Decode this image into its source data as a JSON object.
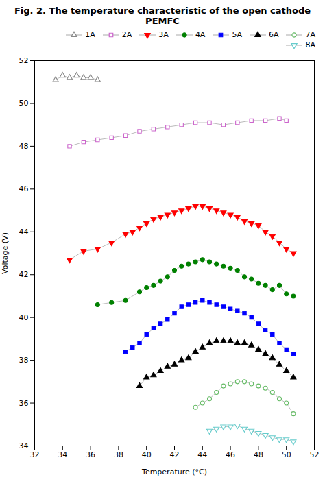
{
  "chart_data": {
    "type": "line",
    "title": "Fig. 2. The temperature characteristic of the open cathode PEMFC",
    "x_label": "Temperature (°C)",
    "y_label": "Voltage (V)",
    "xlim": [
      32,
      52
    ],
    "ylim": [
      34,
      52
    ],
    "xticks": [
      32,
      34,
      36,
      38,
      40,
      42,
      44,
      46,
      48,
      50,
      52
    ],
    "yticks": [
      34,
      36,
      38,
      40,
      42,
      44,
      46,
      48,
      50,
      52
    ],
    "grid": false,
    "legend": "top-right",
    "series": [
      {
        "name": "1A",
        "color": "#888888",
        "marker": "triangle_open",
        "x": [
          33.5,
          34.0,
          34.5,
          35.0,
          35.5,
          36.0,
          36.5
        ],
        "values": [
          51.1,
          51.3,
          51.2,
          51.3,
          51.2,
          51.2,
          51.1
        ]
      },
      {
        "name": "2A",
        "color": "#cc66cc",
        "marker": "square_open",
        "x": [
          34.5,
          35.5,
          36.5,
          37.5,
          38.5,
          39.5,
          40.5,
          41.5,
          42.5,
          43.5,
          44.5,
          45.5,
          46.5,
          47.5,
          48.5,
          49.5,
          50.0
        ],
        "values": [
          48.0,
          48.2,
          48.3,
          48.4,
          48.5,
          48.7,
          48.8,
          48.9,
          49.0,
          49.1,
          49.1,
          49.0,
          49.1,
          49.2,
          49.2,
          49.3,
          49.2
        ]
      },
      {
        "name": "3A",
        "color": "red",
        "marker": "triangle-down",
        "x": [
          34.5,
          35.5,
          36.5,
          37.5,
          38.5,
          39.0,
          39.5,
          40.0,
          40.5,
          41.0,
          41.5,
          42.0,
          42.5,
          43.0,
          43.5,
          44.0,
          44.5,
          45.0,
          45.5,
          46.0,
          46.5,
          47.0,
          47.5,
          48.0,
          48.5,
          49.0,
          49.5,
          50.0,
          50.5
        ],
        "values": [
          42.7,
          43.1,
          43.2,
          43.5,
          43.9,
          44.0,
          44.2,
          44.4,
          44.6,
          44.7,
          44.8,
          44.9,
          45.0,
          45.1,
          45.2,
          45.2,
          45.1,
          45.0,
          44.9,
          44.8,
          44.7,
          44.5,
          44.4,
          44.3,
          44.0,
          43.8,
          43.5,
          43.2,
          43.0
        ]
      },
      {
        "name": "4A",
        "color": "green",
        "marker": "circle",
        "x": [
          36.5,
          37.5,
          38.5,
          39.5,
          40.0,
          40.5,
          41.0,
          41.5,
          42.0,
          42.5,
          43.0,
          43.5,
          44.0,
          44.5,
          45.0,
          45.5,
          46.0,
          46.5,
          47.0,
          47.5,
          48.0,
          48.5,
          49.0,
          49.5,
          50.0,
          50.5
        ],
        "values": [
          40.6,
          40.7,
          40.8,
          41.2,
          41.4,
          41.5,
          41.7,
          41.9,
          42.2,
          42.4,
          42.5,
          42.6,
          42.7,
          42.6,
          42.5,
          42.4,
          42.3,
          42.2,
          41.9,
          41.8,
          41.6,
          41.5,
          41.3,
          41.5,
          41.1,
          41.0
        ]
      },
      {
        "name": "5A",
        "color": "blue",
        "marker": "square",
        "x": [
          38.5,
          39.0,
          39.5,
          40.0,
          40.5,
          41.0,
          41.5,
          42.0,
          42.5,
          43.0,
          43.5,
          44.0,
          44.5,
          45.0,
          45.5,
          46.0,
          46.5,
          47.0,
          47.5,
          48.0,
          48.5,
          49.0,
          49.5,
          50.0,
          50.5
        ],
        "values": [
          38.4,
          38.6,
          38.8,
          39.2,
          39.5,
          39.7,
          39.9,
          40.2,
          40.5,
          40.6,
          40.7,
          40.8,
          40.7,
          40.6,
          40.5,
          40.4,
          40.3,
          40.2,
          40.0,
          39.7,
          39.4,
          39.2,
          38.8,
          38.5,
          38.3
        ]
      },
      {
        "name": "6A",
        "color": "black",
        "marker": "triangle",
        "x": [
          39.5,
          40.0,
          40.5,
          41.0,
          41.5,
          42.0,
          42.5,
          43.0,
          43.5,
          44.0,
          44.5,
          45.0,
          45.5,
          46.0,
          46.5,
          47.0,
          47.5,
          48.0,
          48.5,
          49.0,
          49.5,
          50.0,
          50.5
        ],
        "values": [
          36.8,
          37.2,
          37.3,
          37.5,
          37.7,
          37.8,
          38.0,
          38.1,
          38.4,
          38.6,
          38.8,
          38.9,
          38.9,
          38.9,
          38.8,
          38.8,
          38.7,
          38.5,
          38.3,
          38.1,
          37.8,
          37.5,
          37.2
        ]
      },
      {
        "name": "7A",
        "color": "#66bb66",
        "marker": "circle_open",
        "x": [
          43.5,
          44.0,
          44.5,
          45.0,
          45.5,
          46.0,
          46.5,
          47.0,
          47.5,
          48.0,
          48.5,
          49.0,
          49.5,
          50.0,
          50.5
        ],
        "values": [
          35.8,
          36.0,
          36.2,
          36.5,
          36.8,
          36.9,
          37.0,
          37.0,
          36.9,
          36.8,
          36.7,
          36.5,
          36.2,
          36.0,
          35.5
        ]
      },
      {
        "name": "8A",
        "color": "#66cccc",
        "marker": "triangle-down_open",
        "x": [
          44.5,
          45.0,
          45.5,
          46.0,
          46.5,
          47.0,
          47.5,
          48.0,
          48.5,
          49.0,
          49.5,
          50.0,
          50.5
        ],
        "values": [
          34.7,
          34.8,
          34.9,
          34.9,
          34.95,
          34.8,
          34.7,
          34.6,
          34.5,
          34.4,
          34.3,
          34.3,
          34.2
        ]
      }
    ]
  }
}
